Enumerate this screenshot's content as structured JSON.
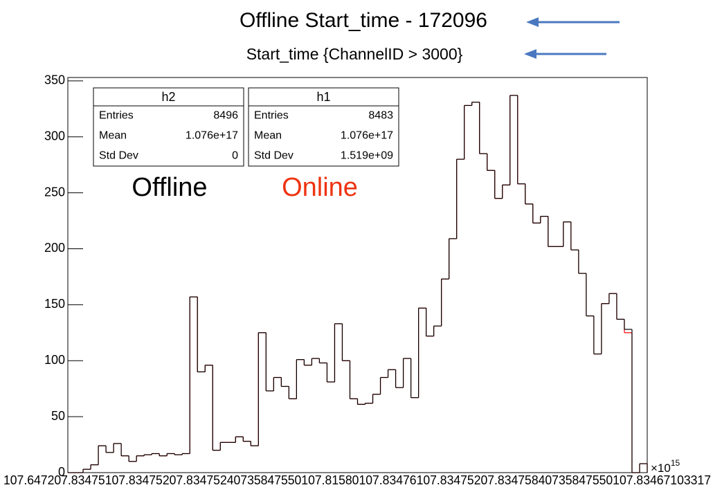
{
  "chart_data": {
    "type": "histogram",
    "title": "Offline Start_time - 172096",
    "subtitle": "Start_time  {ChannelID > 3000}",
    "x_axis_labels": "107.647207.83475107.83475207.83475240735847550107.81580107.83476107.83475207.83475840735847550107.83467103317",
    "x_multiplier": "×10",
    "x_multiplier_exponent": "15",
    "ylim": [
      0,
      353
    ],
    "yticks": [
      0,
      50,
      100,
      150,
      200,
      250,
      300,
      350
    ],
    "series": [
      {
        "name": "h1",
        "color": "#ff0000",
        "values": [
          0,
          0,
          3,
          7,
          24,
          18,
          26,
          15,
          10,
          15,
          16,
          17,
          15,
          17,
          16,
          17,
          157,
          90,
          96,
          20,
          27,
          27,
          32,
          28,
          24,
          125,
          73,
          85,
          77,
          66,
          101,
          96,
          102,
          98,
          81,
          133,
          100,
          66,
          61,
          62,
          70,
          85,
          92,
          76,
          102,
          67,
          147,
          122,
          131,
          173,
          209,
          280,
          328,
          331,
          285,
          270,
          245,
          257,
          337,
          258,
          240,
          223,
          229,
          202,
          202,
          224,
          199,
          178,
          140,
          106,
          151,
          160,
          137,
          125,
          0,
          8
        ]
      },
      {
        "name": "h2",
        "color": "#000000",
        "values": [
          0,
          0,
          3,
          7,
          24,
          18,
          26,
          15,
          10,
          15,
          16,
          17,
          15,
          17,
          16,
          17,
          157,
          90,
          96,
          20,
          27,
          27,
          32,
          28,
          24,
          125,
          73,
          85,
          77,
          66,
          101,
          96,
          102,
          98,
          81,
          133,
          100,
          66,
          61,
          62,
          70,
          85,
          92,
          76,
          102,
          67,
          147,
          122,
          131,
          173,
          209,
          280,
          328,
          331,
          285,
          270,
          245,
          257,
          337,
          258,
          240,
          223,
          229,
          202,
          202,
          224,
          199,
          178,
          140,
          106,
          151,
          160,
          137,
          128,
          0,
          8
        ]
      }
    ],
    "stat_boxes": [
      {
        "series": 1,
        "rows": [
          [
            "Entries",
            "8496"
          ],
          [
            "Mean",
            "1.076e+17"
          ],
          [
            "Std Dev",
            "0"
          ]
        ]
      },
      {
        "series": 0,
        "rows": [
          [
            "Entries",
            "8483"
          ],
          [
            "Mean",
            "1.076e+17"
          ],
          [
            "Std Dev",
            "1.519e+09"
          ]
        ]
      }
    ],
    "annotations": [
      "Offline",
      "Online"
    ]
  }
}
